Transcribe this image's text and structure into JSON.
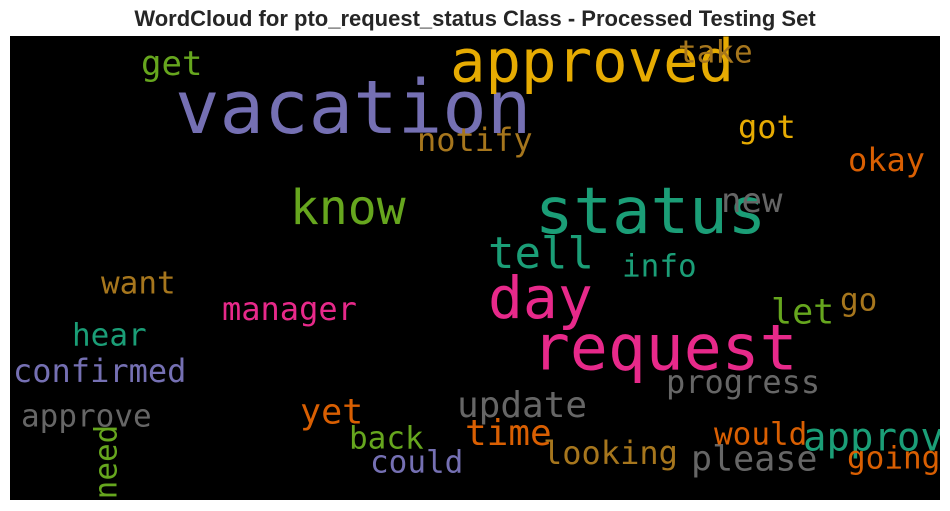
{
  "chart_data": {
    "type": "wordcloud",
    "title": "WordCloud for pto_request_status Class - Processed Testing Set",
    "words": [
      {
        "text": "vacation",
        "weight": 1.0,
        "color": "#7570b3"
      },
      {
        "text": "status",
        "weight": 0.82,
        "color": "#1b9e77"
      },
      {
        "text": "request",
        "weight": 0.8,
        "color": "#e7298a"
      },
      {
        "text": "approved",
        "weight": 0.74,
        "color": "#e6ab02"
      },
      {
        "text": "day",
        "weight": 0.72,
        "color": "#e7298a"
      },
      {
        "text": "know",
        "weight": 0.54,
        "color": "#66a61e"
      },
      {
        "text": "tell",
        "weight": 0.46,
        "color": "#1b9e77"
      },
      {
        "text": "approval",
        "weight": 0.38,
        "color": "#1b9e77"
      },
      {
        "text": "time",
        "weight": 0.33,
        "color": "#d95f02"
      },
      {
        "text": "update",
        "weight": 0.32,
        "color": "#666666"
      },
      {
        "text": "please",
        "weight": 0.31,
        "color": "#666666"
      },
      {
        "text": "yet",
        "weight": 0.3,
        "color": "#d95f02"
      },
      {
        "text": "let",
        "weight": 0.3,
        "color": "#66a61e"
      },
      {
        "text": "new",
        "weight": 0.29,
        "color": "#666666"
      },
      {
        "text": "get",
        "weight": 0.29,
        "color": "#66a61e"
      },
      {
        "text": "manager",
        "weight": 0.25,
        "color": "#e7298a"
      },
      {
        "text": "confirmed",
        "weight": 0.25,
        "color": "#7570b3"
      },
      {
        "text": "got",
        "weight": 0.25,
        "color": "#e6ab02"
      },
      {
        "text": "okay",
        "weight": 0.25,
        "color": "#d95f02"
      },
      {
        "text": "notify",
        "weight": 0.25,
        "color": "#a6761d"
      },
      {
        "text": "progress",
        "weight": 0.25,
        "color": "#666666"
      },
      {
        "text": "looking",
        "weight": 0.25,
        "color": "#a6761d"
      },
      {
        "text": "approve",
        "weight": 0.24,
        "color": "#666666"
      },
      {
        "text": "going",
        "weight": 0.24,
        "color": "#d95f02"
      },
      {
        "text": "want",
        "weight": 0.23,
        "color": "#a6761d"
      },
      {
        "text": "hear",
        "weight": 0.23,
        "color": "#1b9e77"
      },
      {
        "text": "info",
        "weight": 0.23,
        "color": "#1b9e77"
      },
      {
        "text": "take",
        "weight": 0.23,
        "color": "#a6761d"
      },
      {
        "text": "go",
        "weight": 0.23,
        "color": "#a6761d"
      },
      {
        "text": "would",
        "weight": 0.23,
        "color": "#d95f02"
      },
      {
        "text": "could",
        "weight": 0.23,
        "color": "#7570b3"
      },
      {
        "text": "back",
        "weight": 0.23,
        "color": "#66a61e"
      },
      {
        "text": "need",
        "weight": 0.23,
        "color": "#66a61e"
      }
    ]
  }
}
